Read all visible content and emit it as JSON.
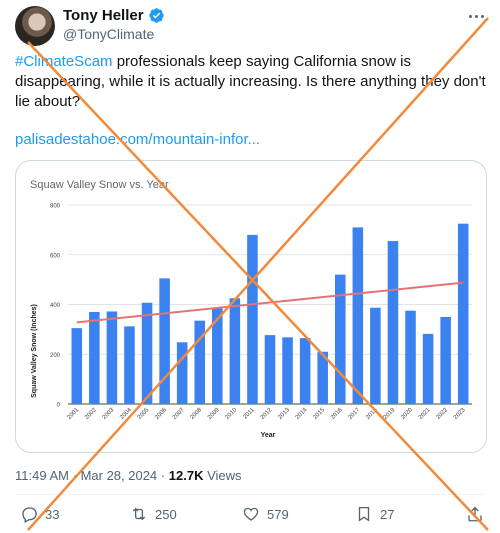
{
  "author": {
    "display_name": "Tony Heller",
    "handle": "@TonyClimate"
  },
  "tweet": {
    "hashtag": "#ClimateScam",
    "text": " professionals keep saying California snow is disappearing, while it is actually increasing. Is there anything they don't lie about?",
    "link": "palisadestahoe.com/mountain-infor..."
  },
  "meta": {
    "time": "11:49 AM",
    "separator": "·",
    "date": "Mar 28, 2024",
    "separator2": "·",
    "views_count": "12.7K",
    "views_label": "Views"
  },
  "actions": {
    "replies": "33",
    "reposts": "250",
    "likes": "579",
    "bookmarks": "27"
  },
  "colors": {
    "accent": "#1d9bf0",
    "bar": "#3b82f0",
    "trend": "#e57373",
    "cross": "#f08a3c"
  },
  "chart_data": {
    "type": "bar",
    "title": "Squaw Valley Snow vs. Year",
    "xlabel": "Year",
    "ylabel": "Squaw Valley Snow (Inches)",
    "ylim": [
      0,
      800
    ],
    "yticks": [
      "0",
      "200",
      "400",
      "600",
      "800"
    ],
    "categories": [
      "2001",
      "2002",
      "2003",
      "2004",
      "2005",
      "2006",
      "2007",
      "2008",
      "2009",
      "2010",
      "2011",
      "2012",
      "2013",
      "2014",
      "2015",
      "2016",
      "2017",
      "2018",
      "2019",
      "2020",
      "2021",
      "2022",
      "2023"
    ],
    "values": [
      305,
      370,
      372,
      312,
      407,
      505,
      248,
      335,
      385,
      425,
      680,
      277,
      268,
      265,
      210,
      520,
      710,
      387,
      655,
      375,
      282,
      350,
      725
    ],
    "trendline": {
      "start": 328,
      "end": 488
    },
    "grid": true
  }
}
